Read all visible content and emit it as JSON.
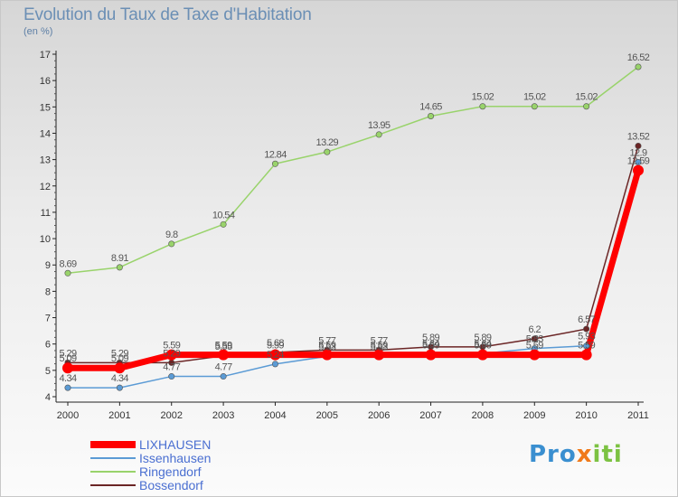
{
  "header": {
    "title": "Evolution du Taux de Taxe d'Habitation",
    "subtitle": "(en %)"
  },
  "logo": {
    "part1": "Pro",
    "part2": "x",
    "part3": "iti"
  },
  "colors": {
    "LIXHAUSEN": "#ff0000",
    "Issenhausen": "#5b9bd5",
    "Ringendorf": "#99d36b",
    "Bossendorf": "#6b2525"
  },
  "chart_data": {
    "type": "line",
    "title": "Evolution du Taux de Taxe d'Habitation",
    "subtitle": "(en %)",
    "x": [
      2000,
      2001,
      2002,
      2003,
      2004,
      2005,
      2006,
      2007,
      2008,
      2009,
      2010,
      2011
    ],
    "ylim": [
      4,
      17
    ],
    "yticks": [
      4,
      5,
      6,
      7,
      8,
      9,
      10,
      11,
      12,
      13,
      14,
      15,
      16,
      17
    ],
    "grid": false,
    "legend_position": "bottom-left",
    "series": [
      {
        "name": "LIXHAUSEN",
        "values": [
          5.09,
          5.09,
          5.59,
          5.59,
          5.59,
          5.59,
          5.59,
          5.59,
          5.59,
          5.59,
          5.59,
          12.59
        ],
        "labels": [
          "5.09",
          "5.09",
          "5.59",
          "5.59",
          "5.59",
          "5.59",
          "5.59",
          "5.59",
          "5.59",
          "5.59",
          "5.59",
          "12.59"
        ]
      },
      {
        "name": "Issenhausen",
        "values": [
          4.34,
          4.34,
          4.77,
          4.77,
          5.24,
          5.53,
          5.53,
          5.64,
          5.64,
          5.83,
          5.93,
          12.9
        ],
        "labels": [
          "4.34",
          "4.34",
          "4.77",
          "4.77",
          "5.24",
          "5.53",
          "5.53",
          "5.64",
          "5.64",
          "5.83",
          "5.93",
          "12.9"
        ]
      },
      {
        "name": "Ringendorf",
        "values": [
          8.69,
          8.91,
          9.8,
          10.54,
          12.84,
          13.29,
          13.95,
          14.65,
          15.02,
          15.02,
          15.02,
          16.52
        ],
        "labels": [
          "8.69",
          "8.91",
          "9.8",
          "10.54",
          "12.84",
          "13.29",
          "13.95",
          "14.65",
          "15.02",
          "15.02",
          "15.02",
          "16.52"
        ]
      },
      {
        "name": "Bossendorf",
        "values": [
          5.29,
          5.29,
          5.29,
          5.55,
          5.68,
          5.77,
          5.77,
          5.89,
          5.89,
          6.2,
          6.57,
          13.52
        ],
        "labels": [
          "5.29",
          "5.29",
          "5.29",
          "5.55",
          "5.68",
          "5.77",
          "5.77",
          "5.89",
          "5.89",
          "6.2",
          "6.57",
          "13.52"
        ]
      }
    ]
  }
}
